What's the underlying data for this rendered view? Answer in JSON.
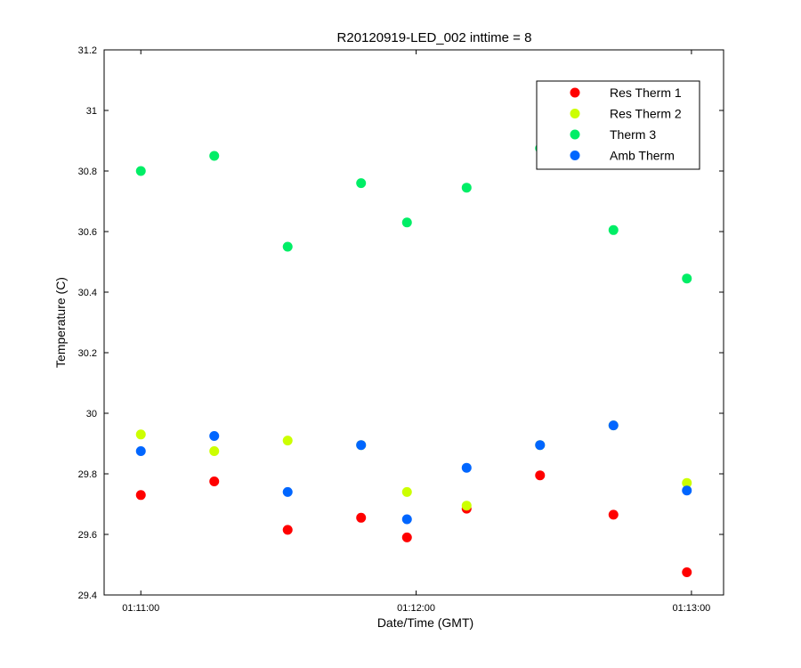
{
  "chart_data": {
    "type": "scatter",
    "title": "R20120919-LED_002 inttime = 8",
    "xlabel": "Date/Time (GMT)",
    "ylabel": "Temperature (C)",
    "ylim": [
      29.4,
      31.2
    ],
    "yticks": [
      "29.4",
      "29.6",
      "29.8",
      "30",
      "30.2",
      "30.4",
      "30.6",
      "30.8",
      "31",
      "31.2"
    ],
    "xlim": [
      "01:10:52",
      "01:13:07"
    ],
    "xticks": [
      "01:11:00",
      "01:12:00",
      "01:13:00"
    ],
    "grid": false,
    "legend_position": "top-right",
    "series": [
      {
        "name": "Res Therm 1",
        "color": "#ff0000",
        "x": [
          "01:11:00",
          "01:11:16",
          "01:11:32",
          "01:11:48",
          "01:11:58",
          "01:12:11",
          "01:12:27",
          "01:12:43",
          "01:12:59"
        ],
        "y": [
          29.73,
          29.775,
          29.615,
          29.655,
          29.59,
          29.685,
          29.795,
          29.665,
          29.475
        ]
      },
      {
        "name": "Res Therm 2",
        "color": "#ccff00",
        "x": [
          "01:11:00",
          "01:11:16",
          "01:11:32",
          "01:11:48",
          "01:11:58",
          "01:12:11",
          "01:12:27",
          "01:12:43",
          "01:12:59"
        ],
        "y": [
          29.93,
          29.875,
          29.91,
          29.895,
          29.74,
          29.695,
          29.895,
          29.96,
          29.77
        ]
      },
      {
        "name": "Therm 3",
        "color": "#00ee66",
        "x": [
          "01:11:00",
          "01:11:16",
          "01:11:32",
          "01:11:48",
          "01:11:58",
          "01:12:11",
          "01:12:27",
          "01:12:43",
          "01:12:59"
        ],
        "y": [
          30.8,
          30.85,
          30.55,
          30.76,
          30.63,
          30.745,
          30.875,
          30.605,
          30.445
        ]
      },
      {
        "name": "Amb Therm",
        "color": "#0066ff",
        "x": [
          "01:11:00",
          "01:11:16",
          "01:11:32",
          "01:11:48",
          "01:11:58",
          "01:12:11",
          "01:12:27",
          "01:12:43",
          "01:12:59"
        ],
        "y": [
          29.875,
          29.925,
          29.74,
          29.895,
          29.65,
          29.82,
          29.895,
          29.96,
          29.745
        ]
      }
    ]
  }
}
